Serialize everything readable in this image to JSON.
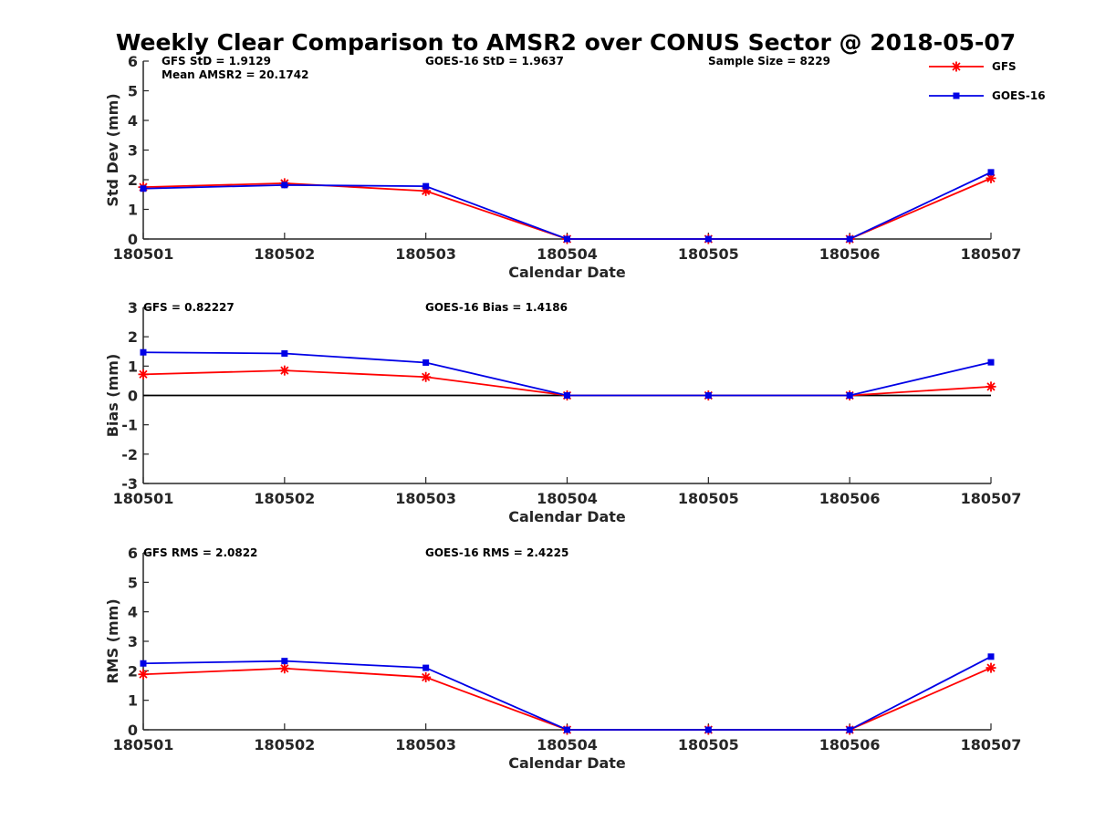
{
  "title": "Weekly Clear Comparison to AMSR2 over CONUS Sector @ 2018-05-07",
  "colors": {
    "GFS": "#ff0000",
    "GOES-16": "#0000e6",
    "zero_line": "#000000",
    "axis": "#262626"
  },
  "legend": {
    "entries": [
      {
        "label": "GFS",
        "color": "#ff0000",
        "marker": "asterisk"
      },
      {
        "label": "GOES-16",
        "color": "#0000e6",
        "marker": "square"
      }
    ]
  },
  "chart_data": [
    {
      "type": "line",
      "xlabel": "Calendar Date",
      "ylabel": "Std Dev (mm)",
      "categories": [
        "180501",
        "180502",
        "180503",
        "180504",
        "180505",
        "180506",
        "180507"
      ],
      "ylim": [
        0,
        6
      ],
      "yticks": [
        "0",
        "1",
        "2",
        "3",
        "4",
        "5",
        "6"
      ],
      "zero_line": false,
      "annotations": [
        "GFS StD = 1.9129",
        "Mean AMSR2 = 20.1742",
        "GOES-16 StD = 1.9637",
        "Sample Size = 8229"
      ],
      "series": [
        {
          "name": "GFS",
          "values": [
            1.75,
            1.88,
            1.62,
            0,
            0,
            0,
            2.05
          ]
        },
        {
          "name": "GOES-16",
          "values": [
            1.7,
            1.82,
            1.78,
            0,
            0,
            0,
            2.25
          ]
        }
      ]
    },
    {
      "type": "line",
      "xlabel": "Calendar Date",
      "ylabel": "Bias (mm)",
      "categories": [
        "180501",
        "180502",
        "180503",
        "180504",
        "180505",
        "180506",
        "180507"
      ],
      "ylim": [
        -3,
        3
      ],
      "yticks": [
        "-3",
        "-2",
        "-1",
        "0",
        "1",
        "2",
        "3"
      ],
      "zero_line": true,
      "annotations": [
        "GFS = 0.82227",
        "GOES-16 Bias  = 1.4186"
      ],
      "series": [
        {
          "name": "GFS",
          "values": [
            0.72,
            0.85,
            0.63,
            0,
            0,
            0,
            0.3
          ]
        },
        {
          "name": "GOES-16",
          "values": [
            1.47,
            1.43,
            1.12,
            0,
            0,
            0,
            1.13
          ]
        }
      ]
    },
    {
      "type": "line",
      "xlabel": "Calendar Date",
      "ylabel": "RMS (mm)",
      "categories": [
        "180501",
        "180502",
        "180503",
        "180504",
        "180505",
        "180506",
        "180507"
      ],
      "ylim": [
        0,
        6
      ],
      "yticks": [
        "0",
        "1",
        "2",
        "3",
        "4",
        "5",
        "6"
      ],
      "zero_line": false,
      "annotations": [
        "GFS RMS = 2.0822",
        "GOES-16 RMS = 2.4225"
      ],
      "series": [
        {
          "name": "GFS",
          "values": [
            1.88,
            2.08,
            1.78,
            0,
            0,
            0,
            2.1
          ]
        },
        {
          "name": "GOES-16",
          "values": [
            2.25,
            2.33,
            2.1,
            0,
            0,
            0,
            2.48
          ]
        }
      ]
    }
  ]
}
